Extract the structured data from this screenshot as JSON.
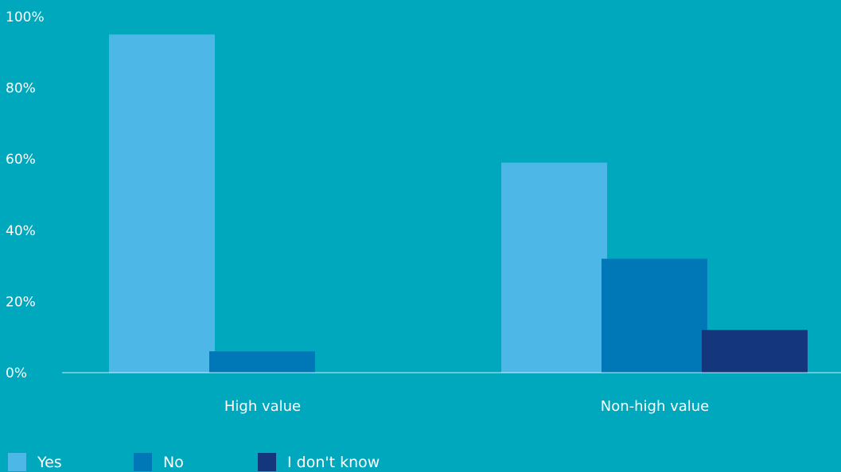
{
  "chart_data": {
    "type": "bar",
    "categories": [
      "High value",
      "Non-high value"
    ],
    "series": [
      {
        "name": "Yes",
        "values": [
          95,
          59
        ],
        "color": "#4db8e8"
      },
      {
        "name": "No",
        "values": [
          6,
          32
        ],
        "color": "#0078b8"
      },
      {
        "name": "I don't know",
        "values": [
          0,
          12
        ],
        "color": "#13367c"
      }
    ],
    "title": "",
    "xlabel": "",
    "ylabel": "",
    "ylim": [
      0,
      100
    ],
    "yticks": [
      "0%",
      "20%",
      "40%",
      "60%",
      "80%",
      "100%"
    ],
    "grid": false,
    "legend_position": "bottom-left",
    "background": "#00a8bd"
  }
}
